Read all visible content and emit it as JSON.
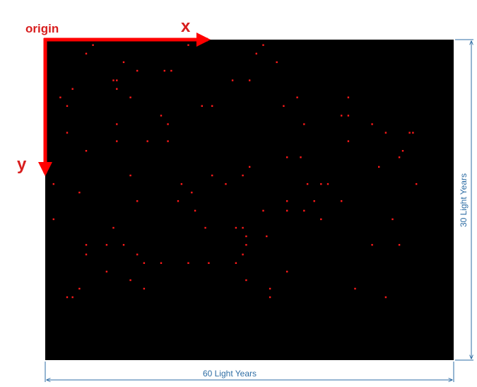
{
  "labels": {
    "origin": "origin",
    "x_axis": "x",
    "y_axis": "y",
    "width": "60 Light Years",
    "height": "30 Light Years"
  },
  "colors": {
    "background": "#000000",
    "star": "#ff1a1a",
    "axis_arrow": "#ff0000",
    "axis_text": "#d81e1e",
    "dimension": "#2e6da4"
  },
  "chart_data": {
    "type": "scatter",
    "xlim": [
      0,
      60
    ],
    "ylim": [
      0,
      30
    ],
    "y_direction": "down",
    "points": [
      [
        7.0,
        0.5
      ],
      [
        21.0,
        0.5
      ],
      [
        32.0,
        0.5
      ],
      [
        6.0,
        1.3
      ],
      [
        31.0,
        1.3
      ],
      [
        11.5,
        2.1
      ],
      [
        34.0,
        2.1
      ],
      [
        13.5,
        2.9
      ],
      [
        17.5,
        2.9
      ],
      [
        18.5,
        2.9
      ],
      [
        10.0,
        3.8
      ],
      [
        10.5,
        3.8
      ],
      [
        27.5,
        3.8
      ],
      [
        30.0,
        3.8
      ],
      [
        4.0,
        4.6
      ],
      [
        10.5,
        4.6
      ],
      [
        2.2,
        5.4
      ],
      [
        12.5,
        5.4
      ],
      [
        37.0,
        5.4
      ],
      [
        44.5,
        5.4
      ],
      [
        3.2,
        6.2
      ],
      [
        23.0,
        6.2
      ],
      [
        24.5,
        6.2
      ],
      [
        35.0,
        6.2
      ],
      [
        17.0,
        7.1
      ],
      [
        43.5,
        7.1
      ],
      [
        44.5,
        7.1
      ],
      [
        10.5,
        7.9
      ],
      [
        18.0,
        7.9
      ],
      [
        38.0,
        7.9
      ],
      [
        48.0,
        7.9
      ],
      [
        3.2,
        8.7
      ],
      [
        50.0,
        8.7
      ],
      [
        53.5,
        8.7
      ],
      [
        54.0,
        8.7
      ],
      [
        10.5,
        9.5
      ],
      [
        15.0,
        9.5
      ],
      [
        18.0,
        9.5
      ],
      [
        44.5,
        9.5
      ],
      [
        6.0,
        10.4
      ],
      [
        52.5,
        10.4
      ],
      [
        35.5,
        11.0
      ],
      [
        37.5,
        11.0
      ],
      [
        52.0,
        11.0
      ],
      [
        30.0,
        11.9
      ],
      [
        49.0,
        11.9
      ],
      [
        12.5,
        12.7
      ],
      [
        24.5,
        12.7
      ],
      [
        29.0,
        12.7
      ],
      [
        1.2,
        13.5
      ],
      [
        20.0,
        13.5
      ],
      [
        26.5,
        13.5
      ],
      [
        38.5,
        13.5
      ],
      [
        40.5,
        13.5
      ],
      [
        41.5,
        13.5
      ],
      [
        54.5,
        13.5
      ],
      [
        5.0,
        14.3
      ],
      [
        21.5,
        14.3
      ],
      [
        13.5,
        15.1
      ],
      [
        19.5,
        15.1
      ],
      [
        35.5,
        15.1
      ],
      [
        39.5,
        15.1
      ],
      [
        43.5,
        15.1
      ],
      [
        22.0,
        16.0
      ],
      [
        32.0,
        16.0
      ],
      [
        35.5,
        16.0
      ],
      [
        38.0,
        16.0
      ],
      [
        1.2,
        16.8
      ],
      [
        40.5,
        16.8
      ],
      [
        51.0,
        16.8
      ],
      [
        10.0,
        17.6
      ],
      [
        23.5,
        17.6
      ],
      [
        28.0,
        17.6
      ],
      [
        29.0,
        17.6
      ],
      [
        29.5,
        18.4
      ],
      [
        32.5,
        18.4
      ],
      [
        6.0,
        19.2
      ],
      [
        9.0,
        19.2
      ],
      [
        11.5,
        19.2
      ],
      [
        29.5,
        19.2
      ],
      [
        48.0,
        19.2
      ],
      [
        52.0,
        19.2
      ],
      [
        6.0,
        20.1
      ],
      [
        13.5,
        20.1
      ],
      [
        29.0,
        20.1
      ],
      [
        14.5,
        20.9
      ],
      [
        17.0,
        20.9
      ],
      [
        21.0,
        20.9
      ],
      [
        24.0,
        20.9
      ],
      [
        28.0,
        20.9
      ],
      [
        9.0,
        21.7
      ],
      [
        35.5,
        21.7
      ],
      [
        12.5,
        22.5
      ],
      [
        29.5,
        22.5
      ],
      [
        5.0,
        23.3
      ],
      [
        14.5,
        23.3
      ],
      [
        33.0,
        23.3
      ],
      [
        45.5,
        23.3
      ],
      [
        3.2,
        24.1
      ],
      [
        4.0,
        24.1
      ],
      [
        33.0,
        24.1
      ],
      [
        50.0,
        24.1
      ]
    ]
  }
}
